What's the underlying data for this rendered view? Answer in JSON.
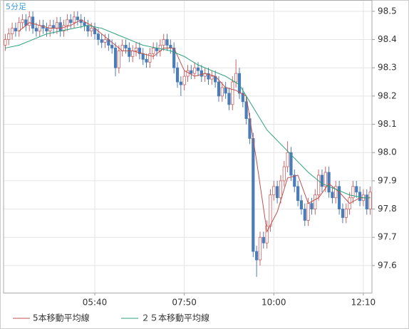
{
  "chart_data": {
    "type": "candlestick",
    "title": "5分足",
    "xlim": [
      -0.5,
      106.5
    ],
    "xticks": [
      {
        "value": 26,
        "label": "05:40"
      },
      {
        "value": 52,
        "label": "07:50"
      },
      {
        "value": 78,
        "label": "10:00"
      },
      {
        "value": 104,
        "label": "12:10"
      }
    ],
    "ylim": [
      97.504,
      98.54
    ],
    "yticks": [
      97.6,
      97.7,
      97.8,
      97.9,
      {
        "value": 98,
        "label": "98.0"
      },
      98.1,
      98.2,
      98.3,
      98.4,
      98.5
    ],
    "grid": true,
    "up_color": "#c86464",
    "down_color": "#4a7cb8",
    "open": [
      98.38,
      98.4,
      98.42,
      98.44,
      98.43,
      98.46,
      98.47,
      98.45,
      98.48,
      98.44,
      98.43,
      98.45,
      98.44,
      98.43,
      98.45,
      98.44,
      98.46,
      98.43,
      98.45,
      98.47,
      98.46,
      98.48,
      98.47,
      98.46,
      98.45,
      98.43,
      98.44,
      98.42,
      98.4,
      98.39,
      98.4,
      98.38,
      98.37,
      98.3,
      98.36,
      98.38,
      98.37,
      98.34,
      98.36,
      98.37,
      98.35,
      98.33,
      98.32,
      98.35,
      98.37,
      98.36,
      98.38,
      98.4,
      98.38,
      98.37,
      98.3,
      98.25,
      98.24,
      98.27,
      98.29,
      98.28,
      98.3,
      98.29,
      98.27,
      98.28,
      98.26,
      98.27,
      98.25,
      98.2,
      98.23,
      98.21,
      98.17,
      98.25,
      98.28,
      98.21,
      98.18,
      98.12,
      98.05,
      97.65,
      97.62,
      97.7,
      97.68,
      97.74,
      97.85,
      97.88,
      97.84,
      97.9,
      97.95,
      98.0,
      97.92,
      97.88,
      97.83,
      97.8,
      97.76,
      97.82,
      97.8,
      97.85,
      97.92,
      97.88,
      97.93,
      97.86,
      97.84,
      97.88,
      97.8,
      97.77,
      97.8,
      97.84,
      97.88,
      97.86,
      97.83,
      97.85,
      97.8
    ],
    "high": [
      98.42,
      98.44,
      98.46,
      98.46,
      98.48,
      98.49,
      98.49,
      98.5,
      98.5,
      98.46,
      98.47,
      98.47,
      98.46,
      98.47,
      98.47,
      98.48,
      98.48,
      98.47,
      98.49,
      98.49,
      98.5,
      98.5,
      98.49,
      98.48,
      98.47,
      98.46,
      98.46,
      98.44,
      98.42,
      98.42,
      98.42,
      98.4,
      98.39,
      98.38,
      98.4,
      98.4,
      98.39,
      98.38,
      98.39,
      98.39,
      98.37,
      98.35,
      98.37,
      98.39,
      98.39,
      98.4,
      98.42,
      98.42,
      98.4,
      98.39,
      98.32,
      98.27,
      98.29,
      98.31,
      98.31,
      98.32,
      98.32,
      98.31,
      98.3,
      98.3,
      98.29,
      98.29,
      98.27,
      98.25,
      98.25,
      98.23,
      98.27,
      98.33,
      98.3,
      98.23,
      98.2,
      98.14,
      98.07,
      97.67,
      97.72,
      97.72,
      97.76,
      97.87,
      97.9,
      97.9,
      97.92,
      97.97,
      98.04,
      98.02,
      97.94,
      97.9,
      97.85,
      97.82,
      97.84,
      97.84,
      97.87,
      97.94,
      97.94,
      97.95,
      97.95,
      97.88,
      97.9,
      97.9,
      97.82,
      97.82,
      97.86,
      97.9,
      97.9,
      97.88,
      97.87,
      97.87,
      97.88
    ],
    "low": [
      98.36,
      98.38,
      98.4,
      98.41,
      98.41,
      98.44,
      98.43,
      98.43,
      98.42,
      98.41,
      98.41,
      98.42,
      98.41,
      98.41,
      98.42,
      98.42,
      98.41,
      98.41,
      98.43,
      98.44,
      98.44,
      98.45,
      98.44,
      98.43,
      98.41,
      98.41,
      98.4,
      98.38,
      98.37,
      98.37,
      98.36,
      98.35,
      98.27,
      98.28,
      98.34,
      98.35,
      98.32,
      98.32,
      98.34,
      98.33,
      98.31,
      98.3,
      98.3,
      98.33,
      98.34,
      98.34,
      98.36,
      98.36,
      98.35,
      98.28,
      98.23,
      98.2,
      98.22,
      98.25,
      98.26,
      98.26,
      98.27,
      98.25,
      98.25,
      98.24,
      98.24,
      98.23,
      98.18,
      98.18,
      98.19,
      98.15,
      98.15,
      98.23,
      98.19,
      98.16,
      98.1,
      98.03,
      97.63,
      97.56,
      97.6,
      97.66,
      97.66,
      97.72,
      97.83,
      97.82,
      97.82,
      97.88,
      97.93,
      97.9,
      97.86,
      97.81,
      97.78,
      97.74,
      97.74,
      97.78,
      97.78,
      97.83,
      97.86,
      97.86,
      97.84,
      97.82,
      97.82,
      97.78,
      97.75,
      97.75,
      97.78,
      97.82,
      97.84,
      97.81,
      97.81,
      97.78,
      97.78
    ],
    "close": [
      98.4,
      98.42,
      98.44,
      98.43,
      98.46,
      98.47,
      98.45,
      98.48,
      98.44,
      98.43,
      98.45,
      98.44,
      98.43,
      98.45,
      98.44,
      98.46,
      98.43,
      98.45,
      98.47,
      98.46,
      98.48,
      98.47,
      98.46,
      98.45,
      98.43,
      98.44,
      98.42,
      98.4,
      98.39,
      98.4,
      98.38,
      98.37,
      98.3,
      98.36,
      98.38,
      98.37,
      98.34,
      98.36,
      98.37,
      98.35,
      98.33,
      98.32,
      98.35,
      98.37,
      98.36,
      98.38,
      98.4,
      98.38,
      98.37,
      98.3,
      98.25,
      98.24,
      98.27,
      98.29,
      98.28,
      98.3,
      98.29,
      98.27,
      98.28,
      98.26,
      98.27,
      98.25,
      98.2,
      98.23,
      98.21,
      98.17,
      98.25,
      98.28,
      98.21,
      98.18,
      98.12,
      98.05,
      97.65,
      97.62,
      97.7,
      97.68,
      97.74,
      97.85,
      97.88,
      97.84,
      97.9,
      97.95,
      98.0,
      97.92,
      97.88,
      97.83,
      97.8,
      97.76,
      97.82,
      97.8,
      97.85,
      97.92,
      97.88,
      97.93,
      97.86,
      97.84,
      97.88,
      97.8,
      97.77,
      97.8,
      97.84,
      97.88,
      97.86,
      97.83,
      97.85,
      97.8,
      97.86
    ],
    "series": [
      {
        "name": "5本移動平均線",
        "color": "#c0504d",
        "x": [
          4,
          7,
          10,
          13,
          16,
          19,
          22,
          25,
          28,
          31,
          34,
          37,
          40,
          43,
          46,
          49,
          52,
          55,
          58,
          61,
          64,
          67,
          70,
          73,
          76,
          79,
          82,
          85,
          88,
          91,
          94,
          97,
          100,
          103,
          106
        ],
        "values": [
          98.43,
          98.46,
          98.45,
          98.44,
          98.44,
          98.45,
          98.47,
          98.45,
          98.42,
          98.39,
          98.36,
          98.36,
          98.35,
          98.34,
          98.37,
          98.37,
          98.29,
          98.27,
          98.28,
          98.27,
          98.23,
          98.22,
          98.2,
          97.97,
          97.72,
          97.79,
          97.91,
          97.92,
          97.82,
          97.84,
          97.89,
          97.86,
          97.82,
          97.84,
          97.84
        ]
      },
      {
        "name": "２５本移動平均線",
        "color": "#2ca07c",
        "x": [
          0,
          4,
          8,
          12,
          16,
          20,
          24,
          28,
          32,
          36,
          40,
          44,
          48,
          52,
          56,
          60,
          64,
          68,
          72,
          76,
          80,
          84,
          88,
          92,
          96,
          100,
          104,
          106
        ],
        "values": [
          98.37,
          98.38,
          98.4,
          98.42,
          98.43,
          98.44,
          98.45,
          98.44,
          98.42,
          98.4,
          98.38,
          98.37,
          98.36,
          98.34,
          98.31,
          98.29,
          98.27,
          98.24,
          98.16,
          98.08,
          98.03,
          97.98,
          97.93,
          97.89,
          97.87,
          97.85,
          97.84,
          97.84
        ]
      }
    ]
  }
}
